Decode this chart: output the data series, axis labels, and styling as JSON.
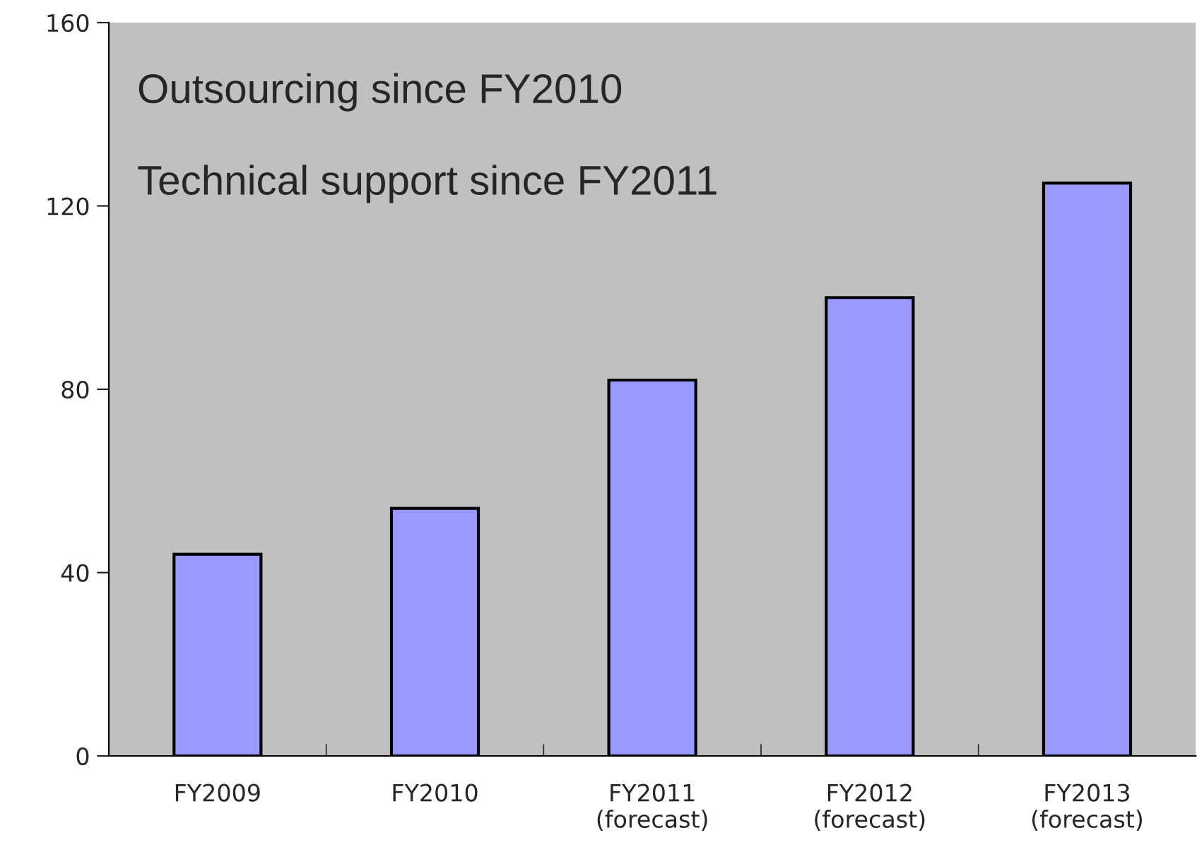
{
  "chart_data": {
    "type": "bar",
    "categories": [
      "FY2009",
      "FY2010",
      "FY2011\n(forecast)",
      "FY2012\n(forecast)",
      "FY2013\n(forecast)"
    ],
    "values": [
      44,
      54,
      82,
      100,
      125
    ],
    "color": "#9999ff",
    "ylim": [
      0,
      160
    ],
    "yticks": [
      0,
      40,
      80,
      120,
      160
    ],
    "grid": false,
    "legend": false,
    "annotations": [
      "Outsourcing since FY2010",
      "Technical support since FY2011"
    ]
  }
}
